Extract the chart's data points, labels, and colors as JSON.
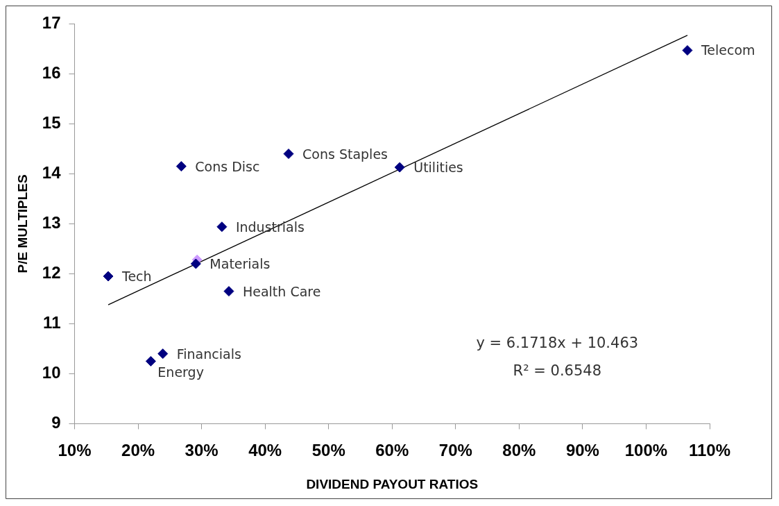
{
  "chart_data": {
    "type": "scatter",
    "xlabel": "DIVIDEND PAYOUT RATIOS",
    "ylabel": "P/E MULTIPLES",
    "xlim": [
      10,
      110
    ],
    "xticks": [
      {
        "value": 10,
        "label": "10%"
      },
      {
        "value": 20,
        "label": "20%"
      },
      {
        "value": 30,
        "label": "30%"
      },
      {
        "value": 40,
        "label": "40%"
      },
      {
        "value": 50,
        "label": "50%"
      },
      {
        "value": 60,
        "label": "60%"
      },
      {
        "value": 70,
        "label": "70%"
      },
      {
        "value": 80,
        "label": "80%"
      },
      {
        "value": 90,
        "label": "90%"
      },
      {
        "value": 100,
        "label": "100%"
      },
      {
        "value": 110,
        "label": "110%"
      }
    ],
    "ylim": [
      9,
      17
    ],
    "yticks": [
      9,
      10,
      11,
      12,
      13,
      14,
      15,
      16,
      17
    ],
    "grid": false,
    "legend": false,
    "marker": "diamond",
    "series": [
      {
        "x": [
          106.5,
          61.2,
          43.7,
          26.8,
          33.2,
          29.3,
          29.1,
          15.3,
          34.3,
          23.9,
          22.0
        ],
        "values": [
          16.47,
          14.13,
          14.4,
          14.15,
          12.94,
          12.28,
          12.2,
          11.95,
          11.65,
          10.4,
          10.25
        ],
        "colors": [
          "#000080",
          "#000080",
          "#000080",
          "#000080",
          "#000080",
          "#cc99ff",
          "#000080",
          "#000080",
          "#000080",
          "#000080",
          "#000080"
        ]
      },
      {
        "type": "line",
        "x": [
          15.3,
          106.5
        ],
        "values": [
          11.38,
          16.77
        ],
        "color": "#000000",
        "marker": "none"
      }
    ],
    "annotations": [
      {
        "text": "Telecom",
        "x": 106.5,
        "y": 16.47
      },
      {
        "text": "Utilities",
        "x": 61.2,
        "y": 14.13
      },
      {
        "text": "Cons Staples",
        "x": 43.7,
        "y": 14.4
      },
      {
        "text": "Cons Disc",
        "x": 26.8,
        "y": 14.15
      },
      {
        "text": "Industrials",
        "x": 33.2,
        "y": 12.94
      },
      {
        "text": "Materials",
        "x": 29.1,
        "y": 12.2
      },
      {
        "text": "Tech",
        "x": 15.3,
        "y": 11.95
      },
      {
        "text": "Health Care",
        "x": 34.3,
        "y": 11.65
      },
      {
        "text": "Financials",
        "x": 23.9,
        "y": 10.4
      },
      {
        "text": "Energy",
        "x": 22.0,
        "y": 10.25
      },
      "y = 6.1718x + 10.463",
      "R² = 0.6548"
    ]
  }
}
